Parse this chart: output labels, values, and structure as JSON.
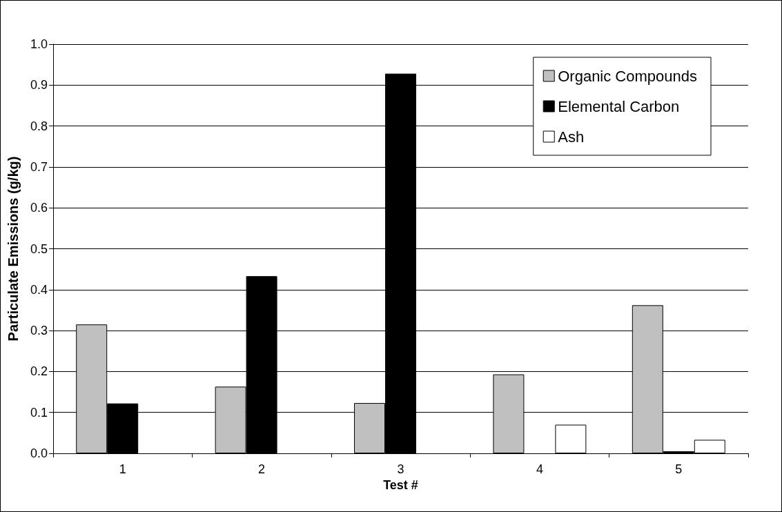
{
  "chart_data": {
    "type": "bar",
    "xlabel": "Test #",
    "ylabel": "Particulate Emissions (g/kg)",
    "categories": [
      "1",
      "2",
      "3",
      "4",
      "5"
    ],
    "series": [
      {
        "name": "Organic Compounds",
        "color": "#c0c0c0",
        "values": [
          0.315,
          0.163,
          0.123,
          0.193,
          0.362
        ]
      },
      {
        "name": "Elemental Carbon",
        "color": "#000000",
        "values": [
          0.122,
          0.433,
          0.928,
          null,
          0.005
        ]
      },
      {
        "name": "Ash",
        "color": "#ffffff",
        "values": [
          null,
          null,
          null,
          0.07,
          0.033
        ]
      }
    ],
    "ylim": [
      0,
      1
    ],
    "yticks": [
      {
        "value": 0,
        "label": "0.0"
      },
      0.1,
      0.2,
      0.3,
      0.4,
      0.5,
      0.6,
      0.7,
      0.8,
      0.9,
      {
        "value": 1,
        "label": "1.0"
      }
    ],
    "grid": "y",
    "legend": "top right"
  }
}
